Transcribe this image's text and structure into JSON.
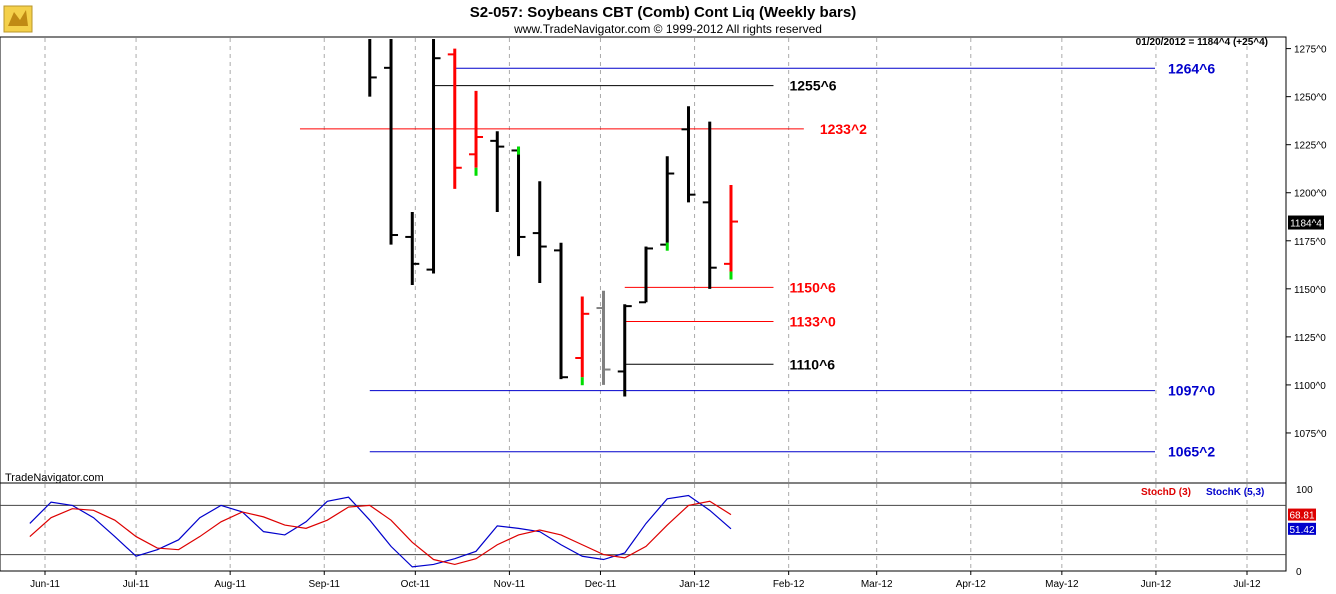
{
  "header": {
    "title": "S2-057:  Soybeans CBT (Comb) Cont Liq  (Weekly bars)",
    "copyright": "www.TradeNavigator.com © 1999-2012 All rights reserved"
  },
  "brand": "TradeNavigator.com",
  "colors": {
    "up": "#000000",
    "down": "#ff0000",
    "neutral": "#888888",
    "blue": "#0000cc",
    "red": "#ff0000",
    "black": "#000000",
    "close_tick_up": "#00dd00",
    "grid": "#aaaaaa"
  },
  "chart_data": [
    {
      "type": "ohlc",
      "title": "S2-057:  Soybeans CBT (Comb) Cont Liq  (Weekly bars)",
      "info_line": "01/20/2012 = 1184^4 (+25^4)",
      "last_price_label": "1184^4",
      "last_price": 1184.5,
      "ylim": [
        1050,
        1280
      ],
      "y_ticks": [
        1075,
        1100,
        1125,
        1150,
        1175,
        1200,
        1225,
        1250,
        1275
      ],
      "y_tick_labels": [
        "1075^0",
        "1100^0",
        "1125^0",
        "1150^0",
        "1175^0",
        "1200^0",
        "1225^0",
        "1250^0",
        "1275^0"
      ],
      "x_tick_labels": [
        "Jun-11",
        "Jul-11",
        "Aug-11",
        "Sep-11",
        "Oct-11",
        "Nov-11",
        "Dec-11",
        "Jan-12",
        "Feb-12",
        "Mar-12",
        "Apr-12",
        "May-12",
        "Jun-12",
        "Jul-12"
      ],
      "x_tick_dates": [
        "2011-06-01",
        "2011-07-01",
        "2011-08-01",
        "2011-09-01",
        "2011-10-01",
        "2011-11-01",
        "2011-12-01",
        "2012-01-01",
        "2012-02-01",
        "2012-03-01",
        "2012-04-01",
        "2012-05-01",
        "2012-06-01",
        "2012-07-01"
      ],
      "bars": [
        {
          "date": "2011-09-16",
          "open": 1280,
          "high": 1285,
          "low": 1250,
          "close": 1260,
          "color": "black"
        },
        {
          "date": "2011-09-23",
          "open": 1265,
          "high": 1285,
          "low": 1173,
          "close": 1178,
          "color": "black"
        },
        {
          "date": "2011-09-30",
          "open": 1177,
          "high": 1190,
          "low": 1152,
          "close": 1163,
          "color": "black"
        },
        {
          "date": "2011-10-07",
          "open": 1160,
          "high": 1285,
          "low": 1158,
          "close": 1270,
          "color": "black"
        },
        {
          "date": "2011-10-14",
          "open": 1272,
          "high": 1275,
          "low": 1202,
          "close": 1213,
          "color": "red"
        },
        {
          "date": "2011-10-21",
          "open": 1220,
          "high": 1253,
          "low": 1213,
          "close": 1229,
          "color": "red"
        },
        {
          "date": "2011-10-28",
          "open": 1227,
          "high": 1232,
          "low": 1190,
          "close": 1224,
          "color": "black"
        },
        {
          "date": "2011-11-04",
          "open": 1222,
          "high": 1224,
          "low": 1167,
          "close": 1177,
          "color": "black"
        },
        {
          "date": "2011-11-11",
          "open": 1179,
          "high": 1206,
          "low": 1153,
          "close": 1172,
          "color": "black"
        },
        {
          "date": "2011-11-18",
          "open": 1170,
          "high": 1174,
          "low": 1103,
          "close": 1104,
          "color": "black"
        },
        {
          "date": "2011-11-25",
          "open": 1114,
          "high": 1146,
          "low": 1104,
          "close": 1137,
          "color": "red"
        },
        {
          "date": "2011-12-02",
          "open": 1140,
          "high": 1149,
          "low": 1100,
          "close": 1108,
          "color": "gray"
        },
        {
          "date": "2011-12-09",
          "open": 1107,
          "high": 1142,
          "low": 1094,
          "close": 1141,
          "color": "black"
        },
        {
          "date": "2011-12-16",
          "open": 1143,
          "high": 1172,
          "low": 1143,
          "close": 1171,
          "color": "black"
        },
        {
          "date": "2011-12-23",
          "open": 1173,
          "high": 1219,
          "low": 1174,
          "close": 1210,
          "color": "black"
        },
        {
          "date": "2011-12-30",
          "open": 1233,
          "high": 1245,
          "low": 1195,
          "close": 1199,
          "color": "black"
        },
        {
          "date": "2012-01-06",
          "open": 1195,
          "high": 1237,
          "low": 1150,
          "close": 1161,
          "color": "black"
        },
        {
          "date": "2012-01-13",
          "open": 1163,
          "high": 1204,
          "low": 1159,
          "close": 1185,
          "color": "red"
        }
      ],
      "levels": [
        {
          "label": "1264^6",
          "value": 1264.75,
          "color": "blue",
          "from": "2011-10-14"
        },
        {
          "label": "1255^6",
          "value": 1255.75,
          "color": "black",
          "from": "2011-10-07",
          "to": "2012-01-27"
        },
        {
          "label": "1233^2",
          "value": 1233.25,
          "color": "red",
          "from": "2011-08-24",
          "to": "2012-02-06"
        },
        {
          "label": "1150^6",
          "value": 1150.75,
          "color": "red",
          "from": "2011-12-09",
          "to": "2012-01-27"
        },
        {
          "label": "1133^0",
          "value": 1133.0,
          "color": "red",
          "from": "2011-12-09",
          "to": "2012-01-27"
        },
        {
          "label": "1110^6",
          "value": 1110.75,
          "color": "black",
          "from": "2011-12-09",
          "to": "2012-01-27"
        },
        {
          "label": "1097^0",
          "value": 1097.0,
          "color": "blue",
          "from": "2011-09-16"
        },
        {
          "label": "1065^2",
          "value": 1065.25,
          "color": "blue",
          "from": "2011-09-16"
        }
      ]
    },
    {
      "type": "line",
      "title": "",
      "ylim": [
        0,
        100
      ],
      "y_ticks": [
        0,
        100
      ],
      "y_tick_labels": [
        "0",
        "100"
      ],
      "reference_lines": [
        80,
        20
      ],
      "legend": [
        "StochD (3)",
        "StochK (5,3)"
      ],
      "series": [
        {
          "name": "StochK (5,3)",
          "color": "#0000cc",
          "last_label": "51.42",
          "x": [
            "2011-05-27",
            "2011-06-03",
            "2011-06-10",
            "2011-06-17",
            "2011-06-24",
            "2011-07-01",
            "2011-07-08",
            "2011-07-15",
            "2011-07-22",
            "2011-07-29",
            "2011-08-05",
            "2011-08-12",
            "2011-08-19",
            "2011-08-26",
            "2011-09-02",
            "2011-09-09",
            "2011-09-16",
            "2011-09-23",
            "2011-09-30",
            "2011-10-07",
            "2011-10-14",
            "2011-10-21",
            "2011-10-28",
            "2011-11-04",
            "2011-11-11",
            "2011-11-18",
            "2011-11-25",
            "2011-12-02",
            "2011-12-09",
            "2011-12-16",
            "2011-12-23",
            "2011-12-30",
            "2012-01-06",
            "2012-01-13"
          ],
          "y": [
            58,
            84,
            80,
            65,
            42,
            18,
            26,
            38,
            65,
            80,
            72,
            48,
            44,
            60,
            85,
            90,
            62,
            30,
            5,
            8,
            15,
            24,
            55,
            52,
            48,
            32,
            18,
            14,
            22,
            58,
            88,
            92,
            74,
            51.42
          ]
        },
        {
          "name": "StochD (3)",
          "color": "#dd0000",
          "last_label": "68.81",
          "x": [
            "2011-05-27",
            "2011-06-03",
            "2011-06-10",
            "2011-06-17",
            "2011-06-24",
            "2011-07-01",
            "2011-07-08",
            "2011-07-15",
            "2011-07-22",
            "2011-07-29",
            "2011-08-05",
            "2011-08-12",
            "2011-08-19",
            "2011-08-26",
            "2011-09-02",
            "2011-09-09",
            "2011-09-16",
            "2011-09-23",
            "2011-09-30",
            "2011-10-07",
            "2011-10-14",
            "2011-10-21",
            "2011-10-28",
            "2011-11-04",
            "2011-11-11",
            "2011-11-18",
            "2011-11-25",
            "2011-12-02",
            "2011-12-09",
            "2011-12-16",
            "2011-12-23",
            "2011-12-30",
            "2012-01-06",
            "2012-01-13"
          ],
          "y": [
            42,
            65,
            76,
            74,
            62,
            42,
            28,
            26,
            42,
            60,
            72,
            66,
            56,
            52,
            62,
            78,
            80,
            62,
            35,
            14,
            8,
            15,
            32,
            44,
            50,
            44,
            32,
            20,
            16,
            30,
            56,
            80,
            85,
            68.81
          ]
        }
      ]
    }
  ]
}
